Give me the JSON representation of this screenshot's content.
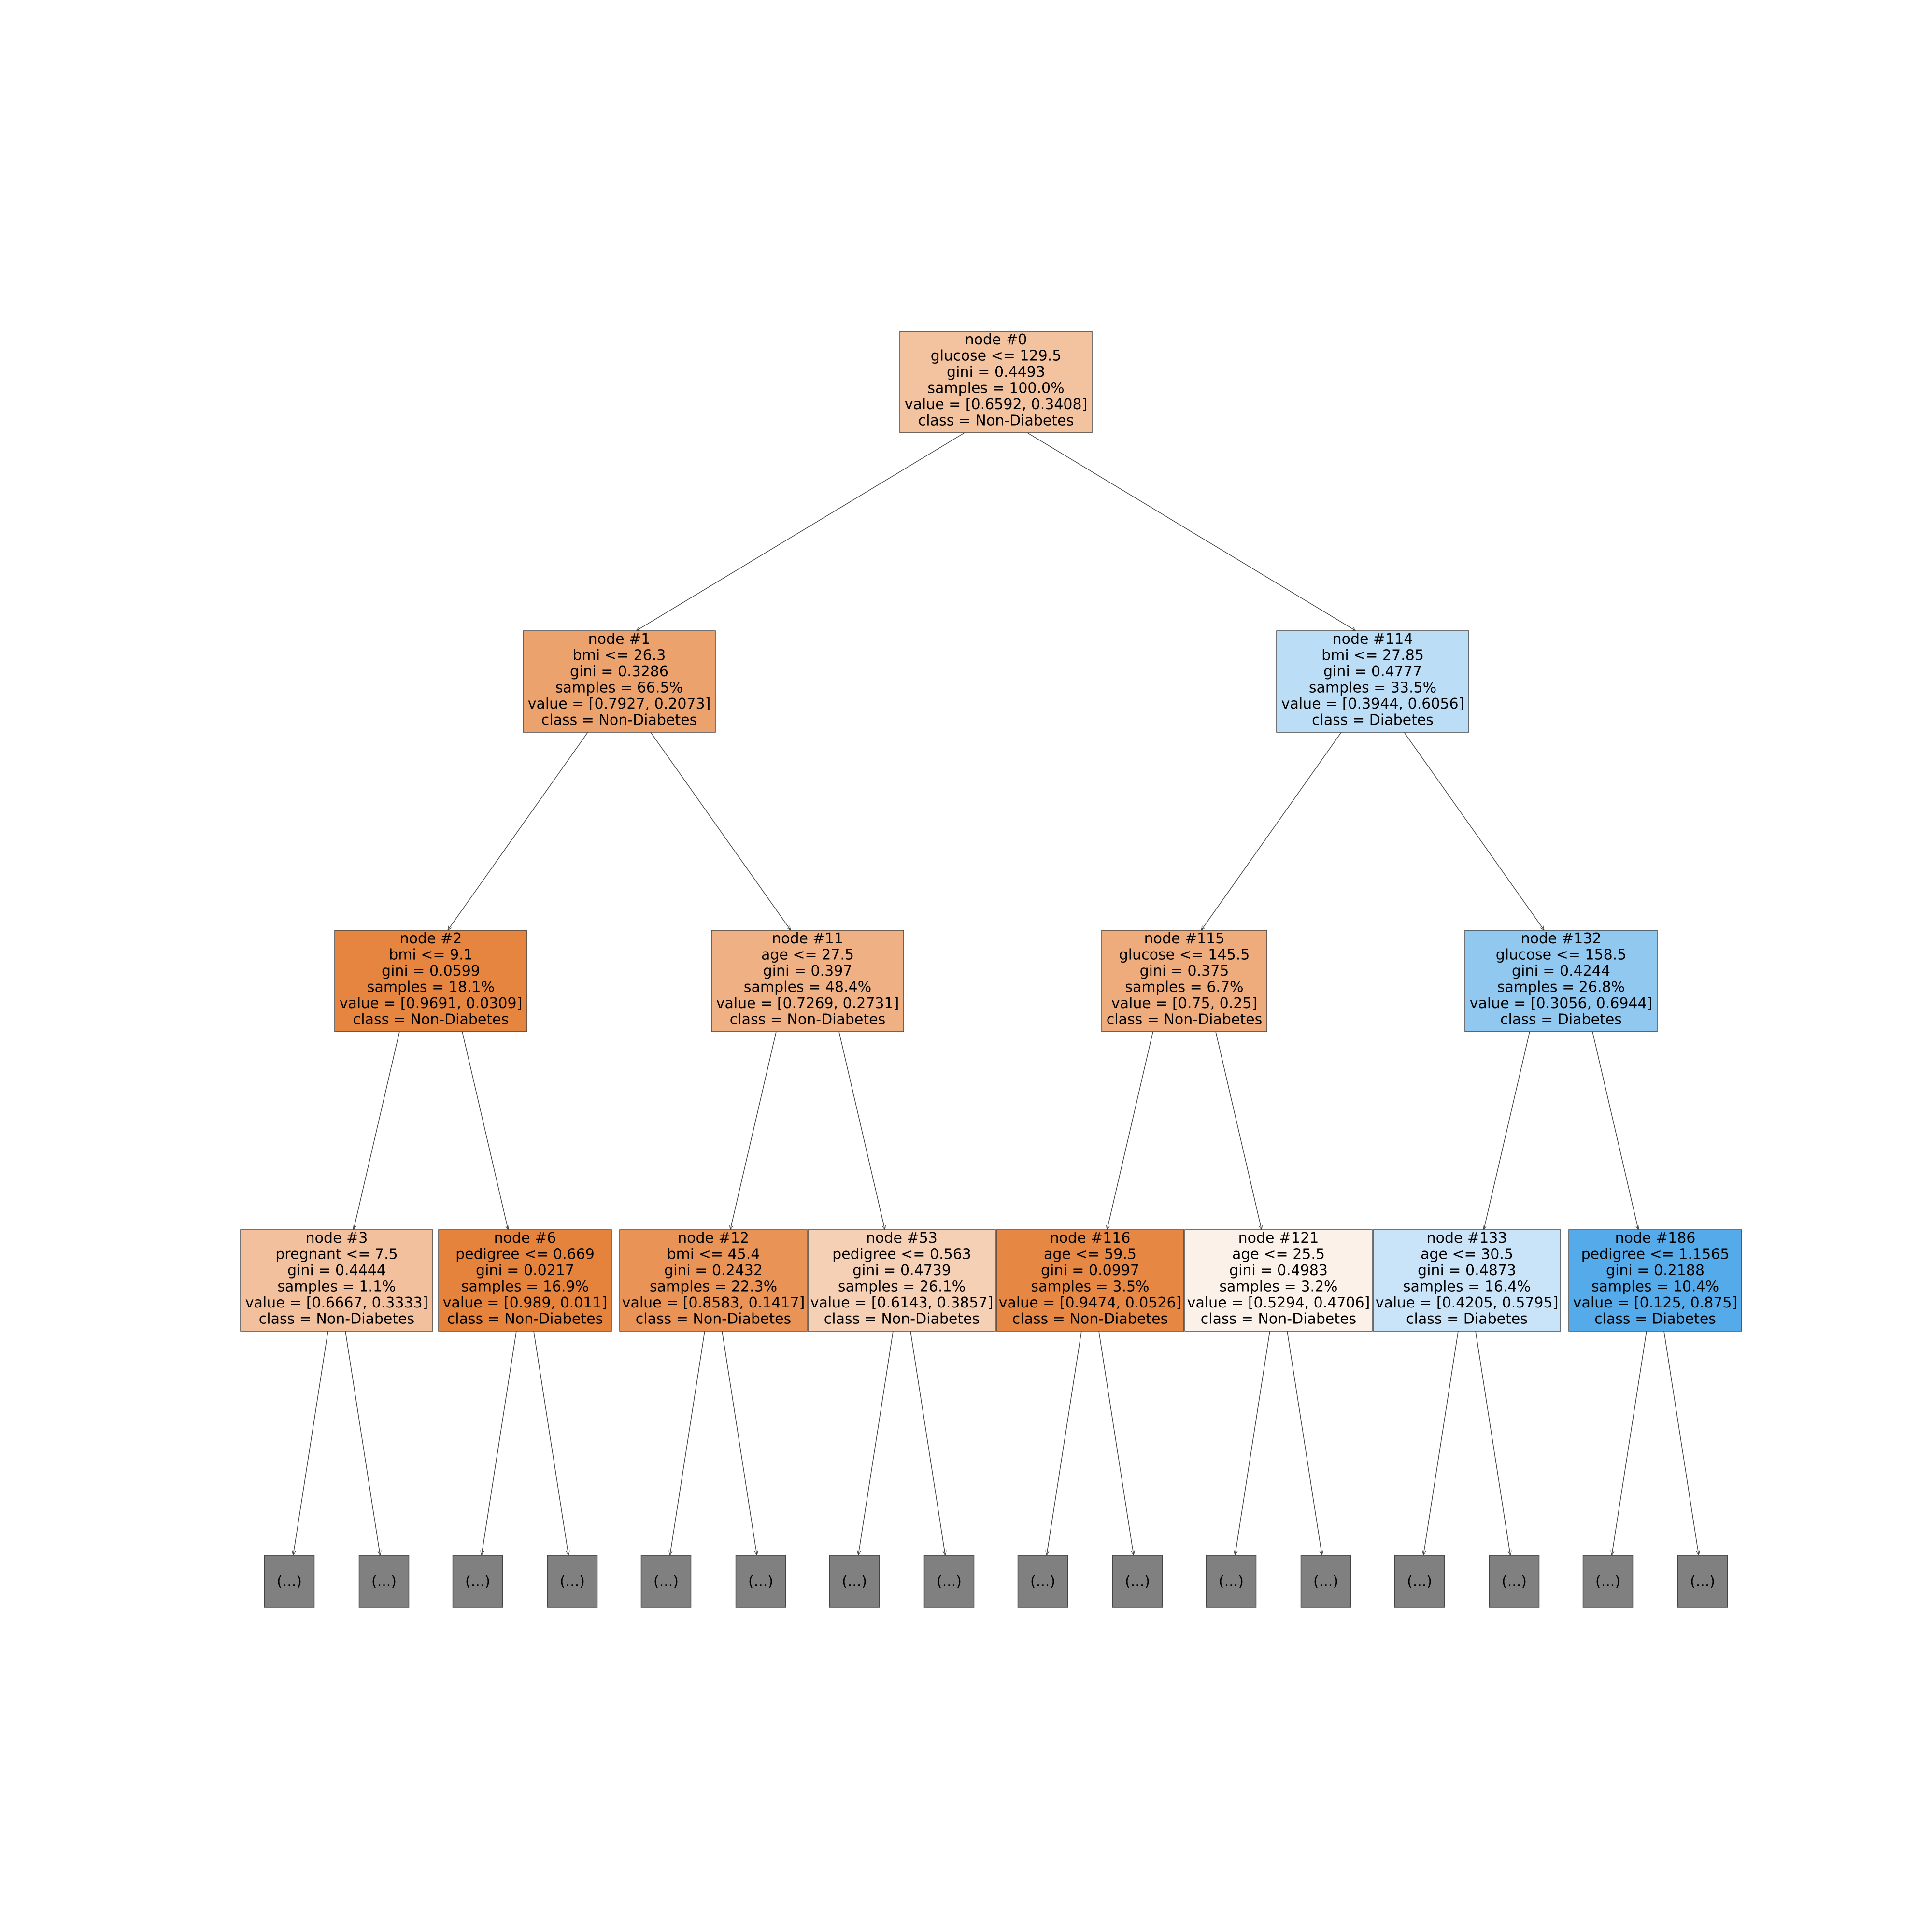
{
  "colors": {
    "orange_strong": "#e58139",
    "blue_strong": "#399de5",
    "stub_fill": "#808080"
  },
  "stub_label": "(...)",
  "nodes": [
    {
      "id": "0",
      "lines": [
        "node #0",
        "glucose <= 129.5",
        "gini = 0.4493",
        "samples = 100.0%",
        "value = [0.6592, 0.3408]",
        "class = Non-Diabetes"
      ],
      "color": "#f3c29e"
    },
    {
      "id": "1",
      "lines": [
        "node #1",
        "bmi <= 26.3",
        "gini = 0.3286",
        "samples = 66.5%",
        "value = [0.7927, 0.2073]",
        "class = Non-Diabetes"
      ],
      "color": "#eca26d"
    },
    {
      "id": "114",
      "lines": [
        "node #114",
        "bmi <= 27.85",
        "gini = 0.4777",
        "samples = 33.5%",
        "value = [0.3944, 0.6056]",
        "class = Diabetes"
      ],
      "color": "#bbddf6"
    },
    {
      "id": "2",
      "lines": [
        "node #2",
        "bmi <= 9.1",
        "gini = 0.0599",
        "samples = 18.1%",
        "value = [0.9691, 0.0309]",
        "class = Non-Diabetes"
      ],
      "color": "#e6853f"
    },
    {
      "id": "11",
      "lines": [
        "node #11",
        "age <= 27.5",
        "gini = 0.397",
        "samples = 48.4%",
        "value = [0.7269, 0.2731]",
        "class = Non-Diabetes"
      ],
      "color": "#efb083"
    },
    {
      "id": "115",
      "lines": [
        "node #115",
        "glucose <= 145.5",
        "gini = 0.375",
        "samples = 6.7%",
        "value = [0.75, 0.25]",
        "class = Non-Diabetes"
      ],
      "color": "#eeab7b"
    },
    {
      "id": "132",
      "lines": [
        "node #132",
        "glucose <= 158.5",
        "gini = 0.4244",
        "samples = 26.8%",
        "value = [0.3056, 0.6944]",
        "class = Diabetes"
      ],
      "color": "#90c8f0"
    },
    {
      "id": "3",
      "lines": [
        "node #3",
        "pregnant <= 7.5",
        "gini = 0.4444",
        "samples = 1.1%",
        "value = [0.6667, 0.3333]",
        "class = Non-Diabetes"
      ],
      "color": "#f2c09c"
    },
    {
      "id": "6",
      "lines": [
        "node #6",
        "pedigree <= 0.669",
        "gini = 0.0217",
        "samples = 16.9%",
        "value = [0.989, 0.011]",
        "class = Non-Diabetes"
      ],
      "color": "#e5823b"
    },
    {
      "id": "12",
      "lines": [
        "node #12",
        "bmi <= 45.4",
        "gini = 0.2432",
        "samples = 22.3%",
        "value = [0.8583, 0.1417]",
        "class = Non-Diabetes"
      ],
      "color": "#e99356"
    },
    {
      "id": "53",
      "lines": [
        "node #53",
        "pedigree <= 0.563",
        "gini = 0.4739",
        "samples = 26.1%",
        "value = [0.6143, 0.3857]",
        "class = Non-Diabetes"
      ],
      "color": "#f5d0b5"
    },
    {
      "id": "116",
      "lines": [
        "node #116",
        "age <= 59.5",
        "gini = 0.0997",
        "samples = 3.5%",
        "value = [0.9474, 0.0526]",
        "class = Non-Diabetes"
      ],
      "color": "#e68844"
    },
    {
      "id": "121",
      "lines": [
        "node #121",
        "age <= 25.5",
        "gini = 0.4983",
        "samples = 3.2%",
        "value = [0.5294, 0.4706]",
        "class = Non-Diabetes"
      ],
      "color": "#fcf1e9"
    },
    {
      "id": "133",
      "lines": [
        "node #133",
        "age <= 30.5",
        "gini = 0.4873",
        "samples = 16.4%",
        "value = [0.4205, 0.5795]",
        "class = Diabetes"
      ],
      "color": "#c9e4f8"
    },
    {
      "id": "186",
      "lines": [
        "node #186",
        "pedigree <= 1.1565",
        "gini = 0.2188",
        "samples = 10.4%",
        "value = [0.125, 0.875]",
        "class = Diabetes"
      ],
      "color": "#55abe9"
    }
  ],
  "edges": [
    [
      "0",
      "1"
    ],
    [
      "0",
      "114"
    ],
    [
      "1",
      "2"
    ],
    [
      "1",
      "11"
    ],
    [
      "114",
      "115"
    ],
    [
      "114",
      "132"
    ],
    [
      "2",
      "3"
    ],
    [
      "2",
      "6"
    ],
    [
      "11",
      "12"
    ],
    [
      "11",
      "53"
    ],
    [
      "115",
      "116"
    ],
    [
      "115",
      "121"
    ],
    [
      "132",
      "133"
    ],
    [
      "132",
      "186"
    ]
  ]
}
